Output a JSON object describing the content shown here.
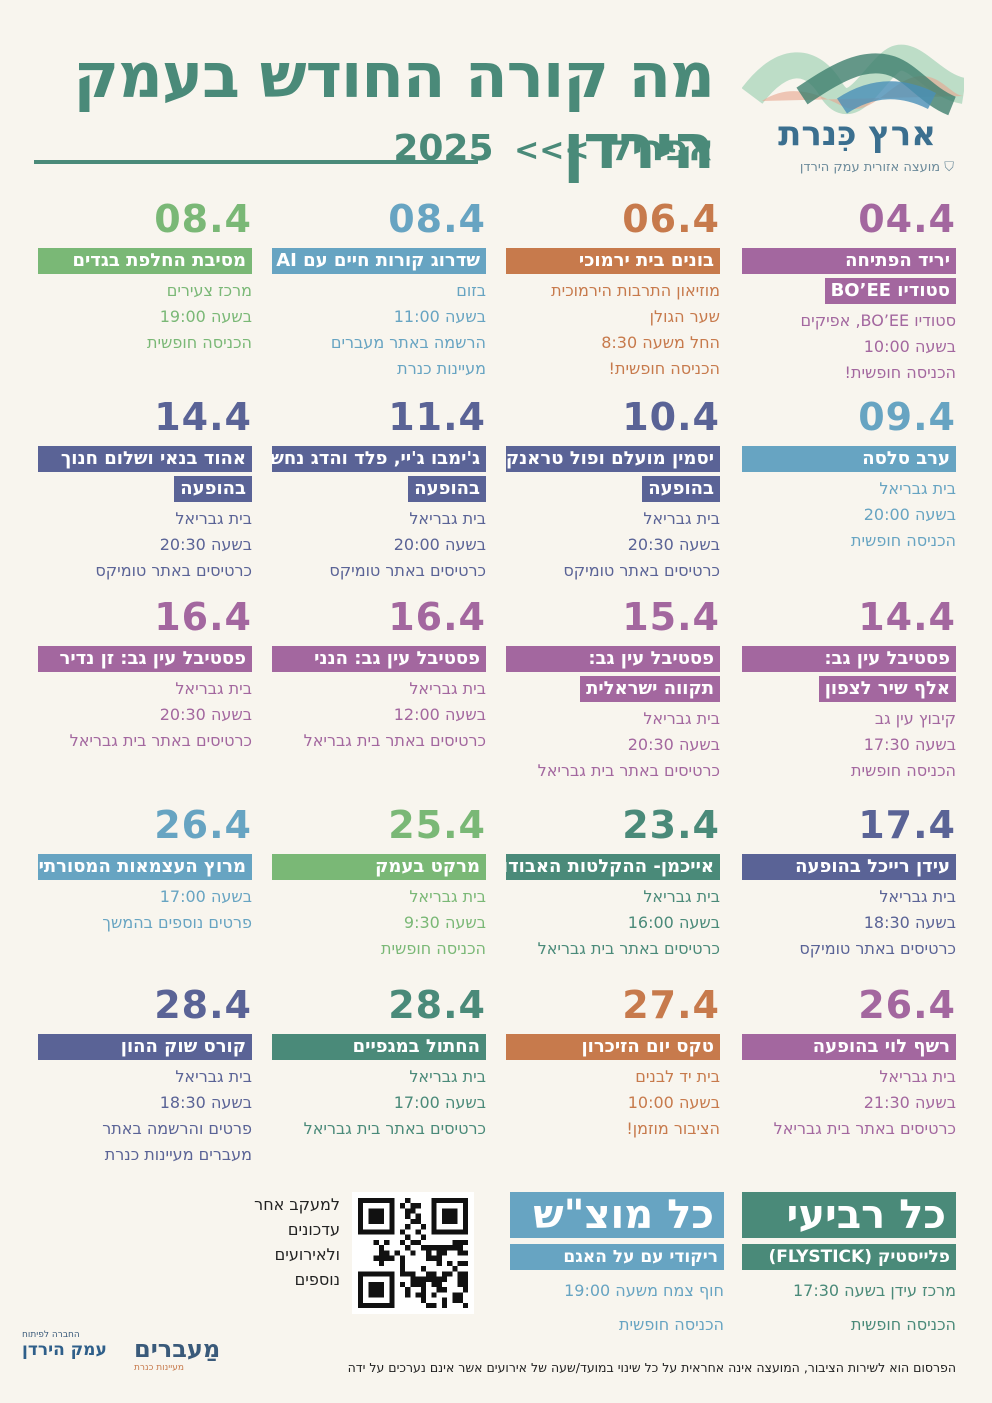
{
  "header": {
    "title": "מה קורה החודש בעמק הירדן",
    "month": "אפריל",
    "arrows": "<<<",
    "year": "2025",
    "logo_name": "ארץ כִּנרת",
    "logo_sub": "מועצה אזורית עמק הירדן"
  },
  "colors": {
    "purple": "#a3679f",
    "orange": "#c77a4c",
    "blue": "#67a4c2",
    "green": "#7ab876",
    "navy": "#5a6396",
    "teal": "#4a8a79"
  },
  "events": [
    {
      "date": "04.4",
      "color": "#a3679f",
      "title": "יריד הפתיחה",
      "title2": "סטודיו BO’EE",
      "lines": [
        "סטודיו BO’EE, אפיקים",
        "בשעה 10:00",
        "הכניסה חופשית!"
      ]
    },
    {
      "date": "06.4",
      "color": "#c77a4c",
      "title": "בונים בית ירמוכי",
      "title2": "",
      "lines": [
        "מוזיאון התרבות הירמוכית",
        "שער הגולן",
        "החל משעה 8:30",
        "הכניסה חופשית!"
      ]
    },
    {
      "date": "08.4",
      "color": "#67a4c2",
      "title": "שדרוג קורות חיים עם AI",
      "title2": "",
      "lines": [
        "בזום",
        "בשעה 11:00",
        "הרשמה באתר מעברים",
        "מעיינות כנרת"
      ]
    },
    {
      "date": "08.4",
      "color": "#7ab876",
      "title": "מסיבת החלפת בגדים",
      "title2": "",
      "lines": [
        "מרכז צעירים",
        "בשעה 19:00",
        "הכניסה חופשית"
      ]
    },
    {
      "date": "09.4",
      "color": "#67a4c2",
      "title": "ערב סלסה",
      "title2": "",
      "lines": [
        "בית גבריאל",
        "בשעה 20:00",
        "הכניסה חופשית"
      ]
    },
    {
      "date": "10.4",
      "color": "#5a6396",
      "title": "יסמין מועלם ופול טראנק",
      "title2": "בהופעה",
      "lines": [
        "בית גבריאל",
        "בשעה 20:30",
        "כרטיסים באתר טומיקס"
      ]
    },
    {
      "date": "11.4",
      "color": "#5a6396",
      "title": "ג'ימבו ג'יי, פלד והדג נחש",
      "title2": "בהופעה",
      "lines": [
        "בית גבריאל",
        "בשעה 20:00",
        "כרטיסים באתר טומיקס"
      ]
    },
    {
      "date": "14.4",
      "color": "#5a6396",
      "title": "אהוד בנאי ושלום חנוך",
      "title2": "בהופעה",
      "lines": [
        "בית גבריאל",
        "בשעה 20:30",
        "כרטיסים באתר טומיקס"
      ]
    },
    {
      "date": "14.4",
      "color": "#a3679f",
      "title": "פסטיבל עין גב:",
      "title2": "אלף שיר לצפון",
      "lines": [
        "קיבוץ עין גב",
        "בשעה 17:30",
        "הכניסה חופשית"
      ]
    },
    {
      "date": "15.4",
      "color": "#a3679f",
      "title": "פסטיבל עין גב:",
      "title2": "תקווה ישראלית",
      "lines": [
        "בית גבריאל",
        "בשעה 20:30",
        "כרטיסים באתר בית גבריאל"
      ]
    },
    {
      "date": "16.4",
      "color": "#a3679f",
      "title": "פסטיבל עין גב: הנני",
      "title2": "",
      "lines": [
        "בית גבריאל",
        "בשעה 12:00",
        "כרטיסים באתר בית גבריאל"
      ]
    },
    {
      "date": "16.4",
      "color": "#a3679f",
      "title": "פסטיבל עין גב: זן נדיר",
      "title2": "",
      "lines": [
        "בית גבריאל",
        "בשעה 20:30",
        "כרטיסים באתר בית גבריאל"
      ]
    },
    {
      "date": "17.4",
      "color": "#5a6396",
      "title": "עידן רייכל בהופעה",
      "title2": "",
      "lines": [
        "בית גבריאל",
        "בשעה 18:30",
        "כרטיסים באתר טומיקס"
      ]
    },
    {
      "date": "23.4",
      "color": "#4a8a79",
      "title": "אייכמן- ההקלטות האבודות",
      "title2": "",
      "lines": [
        "בית גבריאל",
        "בשעה 16:00",
        "כרטיסים באתר בית גבריאל"
      ]
    },
    {
      "date": "25.4",
      "color": "#7ab876",
      "title": "מרקט בעמק",
      "title2": "",
      "lines": [
        "בית גבריאל",
        "בשעה 9:30",
        "הכניסה חופשית"
      ]
    },
    {
      "date": "26.4",
      "color": "#67a4c2",
      "title": "מרוץ העצמאות המסורתי",
      "title2": "",
      "lines": [
        "בשעה 17:00",
        "פרטים נוספים בהמשך"
      ]
    },
    {
      "date": "26.4",
      "color": "#a3679f",
      "title": "רשף לוי בהופעה",
      "title2": "",
      "lines": [
        "בית גבריאל",
        "בשעה 21:30",
        "כרטיסים באתר בית גבריאל"
      ]
    },
    {
      "date": "27.4",
      "color": "#c77a4c",
      "title": "טקס יום הזיכרון",
      "title2": "",
      "lines": [
        "בית יד לבנים",
        "בשעה 10:00",
        "הציבור מוזמן!"
      ]
    },
    {
      "date": "28.4",
      "color": "#4a8a79",
      "title": "החתול במגפיים",
      "title2": "",
      "lines": [
        "בית גבריאל",
        "בשעה 17:00",
        "כרטיסים באתר בית גבריאל"
      ]
    },
    {
      "date": "28.4",
      "color": "#5a6396",
      "title": "קורס שוק ההון",
      "title2": "",
      "lines": [
        "בית גבריאל",
        "בשעה 18:30",
        "פרטים והרשמה באתר",
        "מעברים מעיינות כנרת"
      ]
    }
  ],
  "weekly": [
    {
      "title": "כל רביעי",
      "color": "#4a8a79",
      "sub": "פלייסטיק (FLYSTICK)",
      "lines": [
        "מרכז עידן בשעה 17:30",
        "הכניסה חופשית"
      ]
    },
    {
      "title": "כל מוצ\"ש",
      "color": "#67a4c2",
      "sub": "ריקודי עם על האגם",
      "lines": [
        "חוף צמח משעה 19:00",
        "הכניסה חופשית"
      ]
    }
  ],
  "qr_text": [
    "למעקב אחר",
    "עדכונים",
    "ולאירועים",
    "נוספים"
  ],
  "footer": "הפרסום הוא לשירות הציבור, המועצה אינה אחראית על כל שינוי במועד/שעה של אירועים אשר אינם נערכים על ידה",
  "bottom_logos": {
    "maavarim": "מַעברים",
    "maavarim_sub": "קהילה עסקים קהילה",
    "maavarim_tag": "מעיינות כנרת",
    "emek": "עמק הירדן",
    "emek_sub": "החברה לפיתוח"
  }
}
